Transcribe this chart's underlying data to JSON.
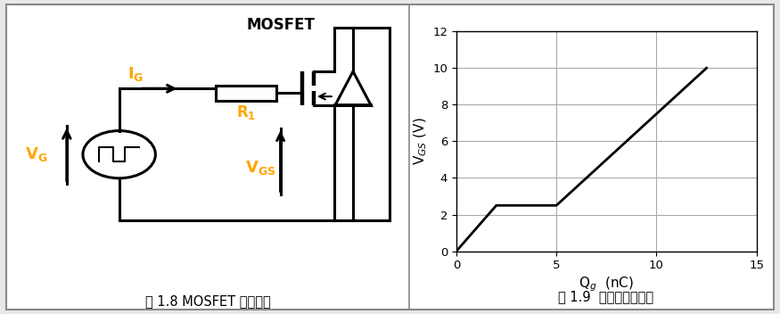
{
  "background_color": "#e8e8e8",
  "panel_bg": "#ffffff",
  "border_color": "#888888",
  "fig_width": 8.75,
  "fig_height": 3.52,
  "graph_x": [
    0,
    2,
    5,
    5.5,
    10,
    12.5
  ],
  "graph_y": [
    0,
    2.5,
    2.5,
    3.0,
    7.5,
    10.0
  ],
  "graph_xlim": [
    0,
    15
  ],
  "graph_ylim": [
    0,
    12
  ],
  "graph_xticks": [
    0,
    5,
    10,
    15
  ],
  "graph_yticks": [
    0,
    2,
    4,
    6,
    8,
    10,
    12
  ],
  "xlabel": "Q$_g$  (nC)",
  "ylabel": "V$_{GS}$ (V)",
  "caption_right": "图 1.9  栊极电荷的特性",
  "caption_left": "图 1.8 MOSFET 驱动电路",
  "line_color": "#000000",
  "grid_color": "#aaaaaa",
  "orange_color": "#FFA500",
  "mosfet_label": "MOSFET"
}
